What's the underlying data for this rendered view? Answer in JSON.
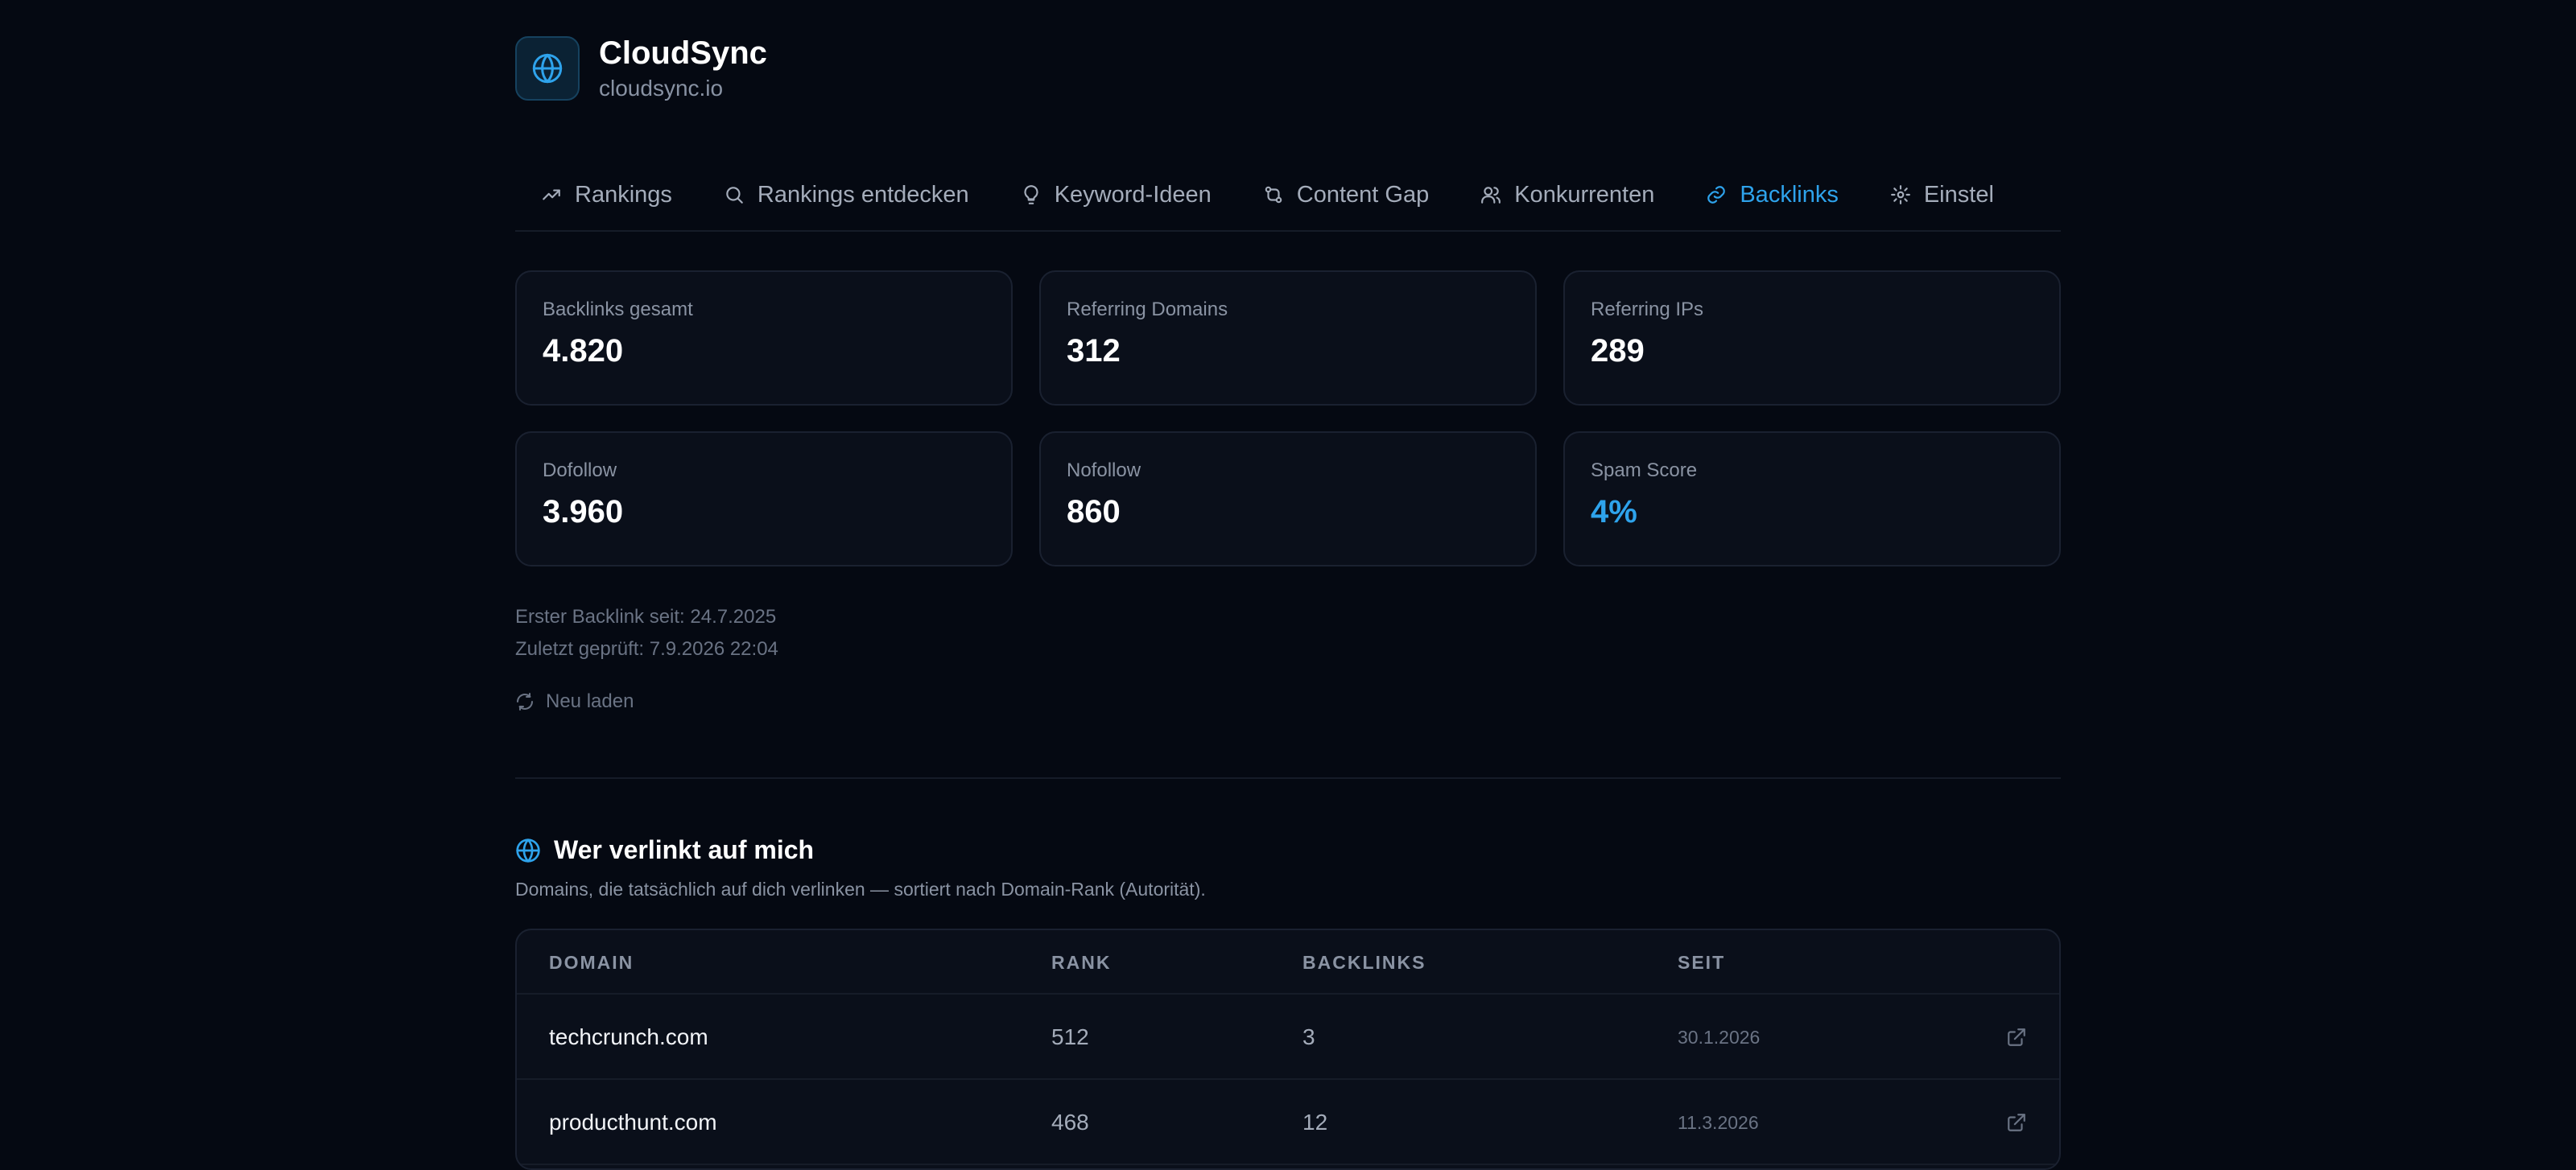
{
  "site": {
    "name": "CloudSync",
    "domain": "cloudsync.io"
  },
  "tabs": [
    {
      "label": "Rankings",
      "icon": "trend-up-icon"
    },
    {
      "label": "Rankings entdecken",
      "icon": "search-icon"
    },
    {
      "label": "Keyword-Ideen",
      "icon": "lightbulb-icon"
    },
    {
      "label": "Content Gap",
      "icon": "compare-icon"
    },
    {
      "label": "Konkurrenten",
      "icon": "users-icon"
    },
    {
      "label": "Backlinks",
      "icon": "link-icon",
      "active": true
    },
    {
      "label": "Einstel",
      "icon": "gear-icon"
    }
  ],
  "stats": [
    {
      "label": "Backlinks gesamt",
      "value": "4.820"
    },
    {
      "label": "Referring Domains",
      "value": "312"
    },
    {
      "label": "Referring IPs",
      "value": "289"
    },
    {
      "label": "Dofollow",
      "value": "3.960"
    },
    {
      "label": "Nofollow",
      "value": "860"
    },
    {
      "label": "Spam Score",
      "value": "4%"
    }
  ],
  "meta": {
    "first_backlink": "Erster Backlink seit: 24.7.2025",
    "last_checked": "Zuletzt geprüft: 7.9.2026 22:04",
    "reload_label": "Neu laden"
  },
  "section": {
    "title": "Wer verlinkt auf mich",
    "description": "Domains, die tatsächlich auf dich verlinken — sortiert nach Domain-Rank (Autorität)."
  },
  "table": {
    "headers": [
      "DOMAIN",
      "RANK",
      "BACKLINKS",
      "SEIT"
    ],
    "rows": [
      {
        "domain": "techcrunch.com",
        "rank": "512",
        "backlinks": "3",
        "since": "30.1.2026"
      },
      {
        "domain": "producthunt.com",
        "rank": "468",
        "backlinks": "12",
        "since": "11.3.2026"
      }
    ]
  },
  "colors": {
    "accent": "#2ea3ec",
    "background": "#050912",
    "card": "#0a0f1a"
  }
}
